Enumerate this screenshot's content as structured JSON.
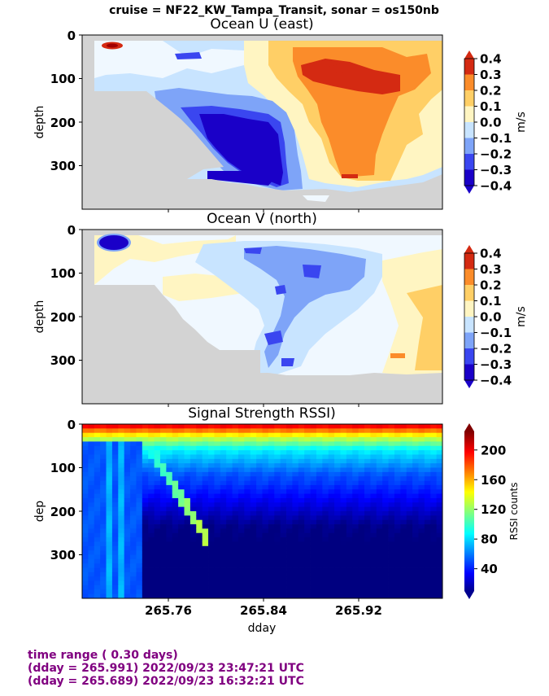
{
  "suptitle": "cruise = NF22_KW_Tampa_Transit,  sonar = os150nb",
  "panels": [
    {
      "title": "Ocean U (east)",
      "ylabel": "depth",
      "cblabel": "m/s"
    },
    {
      "title": "Ocean V (north)",
      "ylabel": "depth",
      "cblabel": "m/s"
    },
    {
      "title": "Signal Strength RSSI)",
      "ylabel": "dep",
      "cblabel": "RSSI counts"
    }
  ],
  "xlabel": "dday",
  "footer": {
    "line1": "time range ( 0.30 days)",
    "line2": "(dday = 265.991) 2022/09/23 23:47:21 UTC",
    "line3": "(dday = 265.689) 2022/09/23 16:32:21 UTC"
  },
  "colors": {
    "nodata": "#d3d3d3",
    "footer_text": "#800080",
    "div_scale": [
      "#1a00c8",
      "#3a46f0",
      "#7ea4f8",
      "#c8e4ff",
      "#f0f8ff",
      "#ffffff",
      "#fff5c2",
      "#ffcf66",
      "#fb8c2a",
      "#d42a12"
    ]
  },
  "chart_data": [
    {
      "type": "heatmap",
      "title": "Ocean U (east)",
      "xlabel": "",
      "ylabel": "depth",
      "x_range": [
        265.689,
        265.991
      ],
      "y_range": [
        400,
        0
      ],
      "y_ticks": [
        0,
        100,
        200,
        300
      ],
      "x_ticks": [
        265.76,
        265.84,
        265.92
      ],
      "colorbar": {
        "label": "m/s",
        "range": [
          -0.4,
          0.4
        ],
        "ticks": [
          "0.4",
          "0.3",
          "0.2",
          "0.1",
          "0.0",
          "−0.1",
          "−0.2",
          "−0.3",
          "−0.4"
        ]
      },
      "pattern": "west: weak (~-0.1 to 0.1 m/s), strong westward (-0.4 to -0.3) at 150-320 m near dday 265.79-265.82, eastward 0.2-0.4 m/s east of 265.86 at 50-150 m"
    },
    {
      "type": "heatmap",
      "title": "Ocean V (north)",
      "xlabel": "",
      "ylabel": "depth",
      "x_range": [
        265.689,
        265.991
      ],
      "y_range": [
        400,
        0
      ],
      "y_ticks": [
        0,
        100,
        200,
        300
      ],
      "x_ticks": [
        265.76,
        265.84,
        265.92
      ],
      "colorbar": {
        "label": "m/s",
        "range": [
          -0.4,
          0.4
        ],
        "ticks": [
          "0.4",
          "0.3",
          "0.2",
          "0.1",
          "0.0",
          "−0.1",
          "−0.2",
          "−0.3",
          "−0.4"
        ]
      },
      "pattern": "mostly weak southward (-0.1 to -0.2 m/s), strong southward (-0.4) near surface at dday ~265.72, northward 0.1-0.2 m/s near eastern edge below 150 m"
    },
    {
      "type": "heatmap",
      "title": "Signal Strength RSSI)",
      "xlabel": "dday",
      "ylabel": "dep",
      "x_range": [
        265.689,
        265.991
      ],
      "y_range": [
        400,
        0
      ],
      "y_ticks": [
        0,
        100,
        200,
        300
      ],
      "x_ticks": [
        265.76,
        265.84,
        265.92
      ],
      "x_ticklabels": [
        "265.76",
        "265.84",
        "265.92"
      ],
      "colorbar": {
        "label": "RSSI counts",
        "range": [
          10,
          225
        ],
        "ticks": [
          "200",
          "160",
          "120",
          "80",
          "40"
        ]
      },
      "pattern": "~200 counts at surface, decreasing to ~40 by 100-150 m and ~15-25 at depth"
    }
  ]
}
